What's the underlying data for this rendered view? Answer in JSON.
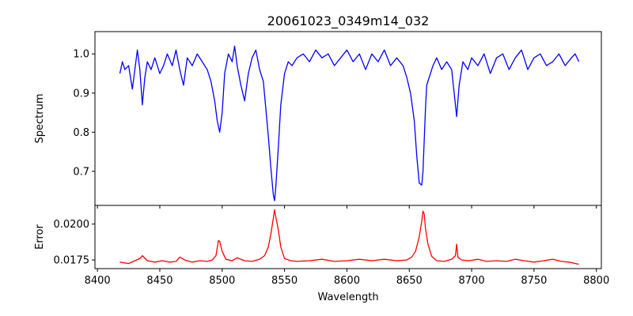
{
  "chart_data": [
    {
      "type": "line",
      "title": "20061023_0349m14_032",
      "xlabel": "",
      "ylabel": "Spectrum",
      "xlim": [
        8398,
        8804
      ],
      "ylim": [
        0.613,
        1.057
      ],
      "x_ticks": [
        8400,
        8450,
        8500,
        8550,
        8600,
        8650,
        8700,
        8750,
        8800
      ],
      "y_ticks": [
        0.7,
        0.8,
        0.9,
        1.0
      ],
      "y_tick_labels": [
        "0.7",
        "0.8",
        "0.9",
        "1.0"
      ],
      "grid": false,
      "series": [
        {
          "color": "#0000ff",
          "x": [
            8418,
            8420,
            8422,
            8425,
            8428,
            8430,
            8432,
            8434,
            8436,
            8438,
            8440,
            8443,
            8446,
            8450,
            8453,
            8456,
            8460,
            8463,
            8466,
            8469,
            8472,
            8476,
            8480,
            8484,
            8488,
            8491,
            8494,
            8496,
            8498,
            8500,
            8502,
            8505,
            8508,
            8510,
            8512,
            8515,
            8518,
            8521,
            8524,
            8527,
            8530,
            8533,
            8535,
            8537,
            8539,
            8541,
            8542,
            8543,
            8545,
            8547,
            8550,
            8553,
            8556,
            8560,
            8565,
            8570,
            8575,
            8580,
            8585,
            8590,
            8595,
            8600,
            8605,
            8610,
            8615,
            8620,
            8625,
            8630,
            8635,
            8640,
            8645,
            8648,
            8651,
            8654,
            8656,
            8658,
            8660,
            8661,
            8662,
            8663,
            8664,
            8666,
            8669,
            8672,
            8676,
            8680,
            8684,
            8686,
            8688,
            8690,
            8693,
            8697,
            8700,
            8705,
            8710,
            8715,
            8720,
            8725,
            8730,
            8735,
            8740,
            8745,
            8750,
            8755,
            8760,
            8765,
            8770,
            8775,
            8780,
            8783,
            8786
          ],
          "y": [
            0.95,
            0.98,
            0.96,
            0.97,
            0.91,
            0.96,
            1.01,
            0.96,
            0.87,
            0.94,
            0.98,
            0.96,
            0.99,
            0.95,
            0.97,
            1.0,
            0.97,
            1.01,
            0.96,
            0.92,
            0.99,
            0.97,
            1.0,
            0.98,
            0.96,
            0.93,
            0.88,
            0.83,
            0.8,
            0.85,
            0.95,
            1.0,
            0.98,
            1.02,
            0.97,
            0.92,
            0.88,
            0.95,
            0.99,
            1.01,
            0.96,
            0.93,
            0.86,
            0.79,
            0.71,
            0.64,
            0.625,
            0.66,
            0.76,
            0.87,
            0.95,
            0.98,
            0.97,
            0.99,
            1.0,
            0.98,
            1.01,
            0.99,
            1.0,
            0.97,
            0.99,
            1.01,
            0.98,
            1.0,
            0.96,
            1.0,
            0.98,
            1.01,
            0.97,
            0.99,
            0.97,
            0.94,
            0.9,
            0.83,
            0.74,
            0.67,
            0.665,
            0.7,
            0.78,
            0.86,
            0.92,
            0.94,
            0.97,
            0.99,
            0.96,
            0.98,
            0.96,
            0.9,
            0.84,
            0.92,
            0.98,
            0.96,
            0.99,
            0.97,
            1.0,
            0.95,
            0.99,
            1.0,
            0.96,
            0.99,
            1.01,
            0.96,
            0.99,
            1.0,
            0.97,
            0.98,
            1.0,
            0.97,
            0.99,
            1.0,
            0.98
          ]
        }
      ]
    },
    {
      "type": "line",
      "title": "",
      "xlabel": "Wavelength",
      "ylabel": "Error",
      "xlim": [
        8398,
        8804
      ],
      "ylim": [
        0.0169,
        0.0213
      ],
      "x_ticks": [
        8400,
        8450,
        8500,
        8550,
        8600,
        8650,
        8700,
        8750,
        8800
      ],
      "x_tick_labels": [
        "8400",
        "8450",
        "8500",
        "8550",
        "8600",
        "8650",
        "8700",
        "8750",
        "8800"
      ],
      "y_ticks": [
        0.0175,
        0.02
      ],
      "y_tick_labels": [
        "0.0175",
        "0.0200"
      ],
      "grid": false,
      "series": [
        {
          "color": "#ff0000",
          "x": [
            8418,
            8425,
            8430,
            8434,
            8436,
            8440,
            8446,
            8452,
            8458,
            8463,
            8466,
            8470,
            8476,
            8482,
            8488,
            8492,
            8495,
            8497,
            8498,
            8500,
            8503,
            8508,
            8512,
            8518,
            8524,
            8530,
            8534,
            8537,
            8539,
            8541,
            8542,
            8543,
            8545,
            8547,
            8550,
            8555,
            8560,
            8570,
            8580,
            8590,
            8600,
            8610,
            8620,
            8630,
            8640,
            8648,
            8652,
            8655,
            8658,
            8660,
            8661,
            8662,
            8663,
            8665,
            8668,
            8672,
            8678,
            8684,
            8687,
            8688,
            8689,
            8692,
            8698,
            8705,
            8712,
            8720,
            8728,
            8735,
            8742,
            8750,
            8758,
            8765,
            8772,
            8778,
            8786
          ],
          "y": [
            0.01735,
            0.01725,
            0.01745,
            0.0176,
            0.0178,
            0.01745,
            0.01735,
            0.01745,
            0.01735,
            0.0174,
            0.0177,
            0.0175,
            0.01735,
            0.01745,
            0.0174,
            0.0175,
            0.0178,
            0.01885,
            0.0188,
            0.0181,
            0.01755,
            0.01745,
            0.01765,
            0.01745,
            0.0174,
            0.01755,
            0.0178,
            0.0184,
            0.0193,
            0.0204,
            0.021,
            0.0205,
            0.0196,
            0.0184,
            0.0176,
            0.01745,
            0.0174,
            0.01745,
            0.01755,
            0.0174,
            0.01745,
            0.01755,
            0.01745,
            0.01755,
            0.01745,
            0.0175,
            0.0177,
            0.0181,
            0.0191,
            0.0202,
            0.0209,
            0.0207,
            0.0197,
            0.0186,
            0.01775,
            0.01745,
            0.0174,
            0.01755,
            0.0178,
            0.0186,
            0.0177,
            0.0175,
            0.01745,
            0.01755,
            0.0174,
            0.01745,
            0.0174,
            0.01755,
            0.01745,
            0.01735,
            0.01745,
            0.01755,
            0.0174,
            0.01735,
            0.0172
          ]
        }
      ]
    }
  ]
}
